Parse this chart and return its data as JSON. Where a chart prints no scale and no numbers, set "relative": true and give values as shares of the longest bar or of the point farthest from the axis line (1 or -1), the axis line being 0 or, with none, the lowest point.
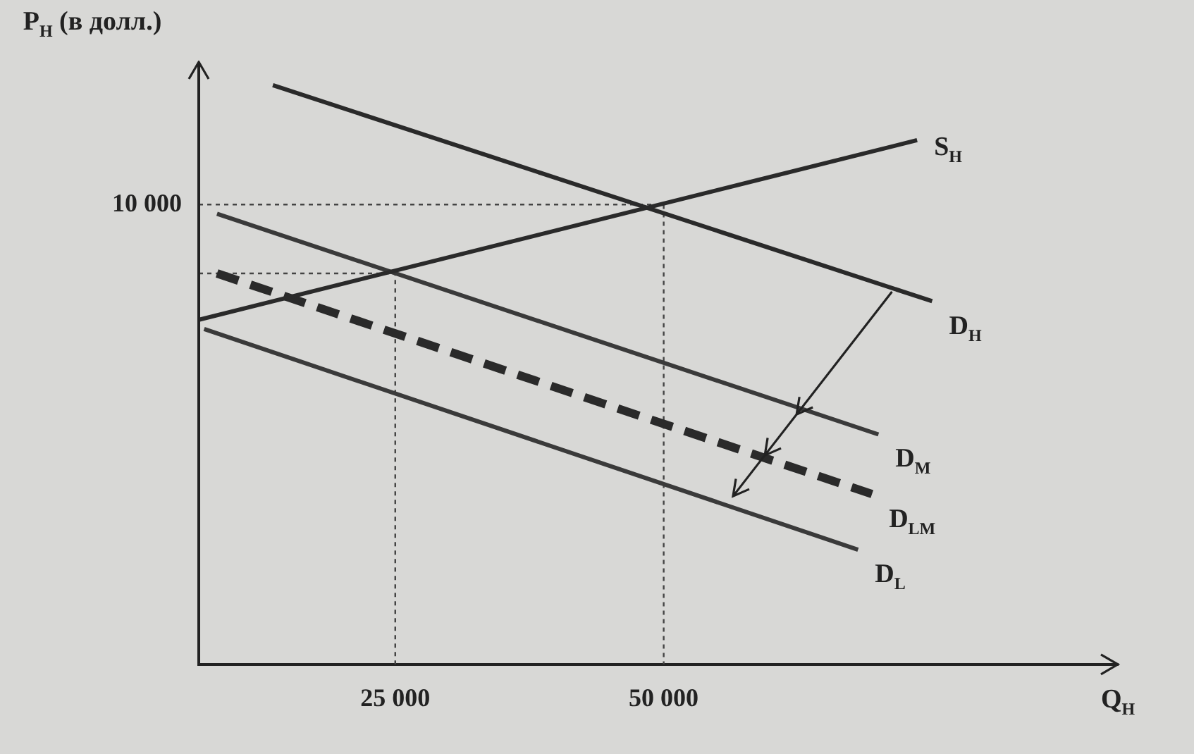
{
  "chart_data": {
    "type": "line",
    "xlabel": "Q$_{Н}$",
    "ylabel": "P$_{Н}$ (в долл.)",
    "relative": true,
    "xlim": [
      6700,
      92300
    ],
    "xticks": [
      {
        "value": 25000,
        "label": "25 000"
      },
      {
        "value": 50000,
        "label": "50 000"
      }
    ],
    "annotations": [
      "10 000"
    ],
    "grid": false,
    "legend": false,
    "marker": "none",
    "series": [
      {
        "name": "S$_{Н}$",
        "color": "#2a2a2a",
        "x": [
          6700,
          73600
        ],
        "values": [
          0.595,
          0.905
        ],
        "line_style": "solid"
      },
      {
        "name": "D$_{Н}$",
        "color": "#2a2a2a",
        "x": [
          13600,
          75000
        ],
        "values": [
          1,
          0.627
        ],
        "line_style": "solid"
      },
      {
        "name": "D$_{M}$",
        "color": "#3a3a3a",
        "x": [
          8400,
          70000
        ],
        "values": [
          0.778,
          0.397
        ],
        "line_style": "solid"
      },
      {
        "name": "D$_{LM}$",
        "color": "#2a2a2a",
        "x": [
          8400,
          69400
        ],
        "values": [
          0.675,
          0.294
        ],
        "line_style": "dashed"
      },
      {
        "name": "D$_{L}$",
        "color": "#3a3a3a",
        "x": [
          7200,
          68100
        ],
        "values": [
          0.579,
          0.198
        ],
        "line_style": "solid"
      },
      {
        "color": "#444444",
        "x": [
          6700,
          50000,
          50000
        ],
        "values": [
          0.794,
          0.794,
          0
        ],
        "line_style": "dotted"
      },
      {
        "color": "#444444",
        "x": [
          6700,
          25000,
          25000
        ],
        "values": [
          0.675,
          0.675,
          0
        ],
        "line_style": "dotted"
      }
    ]
  }
}
